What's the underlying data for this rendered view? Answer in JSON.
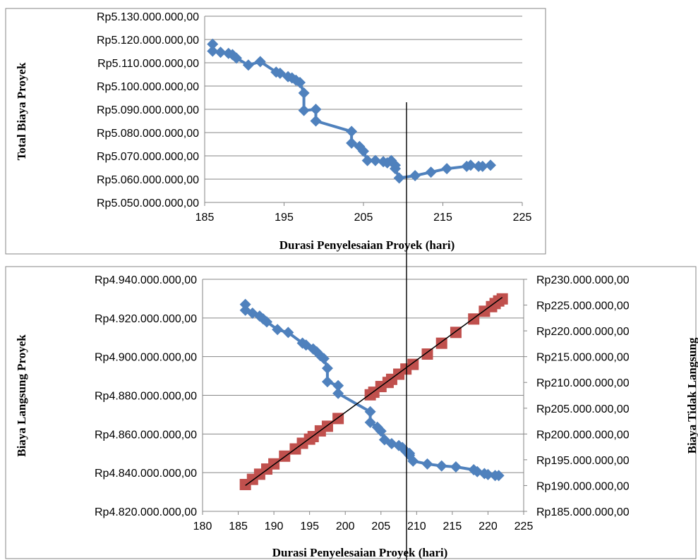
{
  "chart_data": [
    {
      "type": "line",
      "name": "total-cost-chart",
      "xlabel": "Durasi Penyelesaian Proyek (hari)",
      "ylabel": "Total Biaya Proyek",
      "xlim": [
        185,
        225
      ],
      "ylim": [
        5050000000,
        5130000000
      ],
      "x_ticks": [
        "185",
        "195",
        "205",
        "215",
        "225"
      ],
      "y_ticks": [
        "Rp5.050.000.000,00",
        "Rp5.060.000.000,00",
        "Rp5.070.000.000,00",
        "Rp5.080.000.000,00",
        "Rp5.090.000.000,00",
        "Rp5.100.000.000,00",
        "Rp5.110.000.000,00",
        "Rp5.120.000.000,00",
        "Rp5.130.000.000,00"
      ],
      "grid": true,
      "series": [
        {
          "color": "#4F81BD",
          "marker": "diamond",
          "x": [
            186,
            186,
            187,
            188,
            188.5,
            189,
            190.5,
            192,
            194,
            194.5,
            195.5,
            196,
            196.5,
            197,
            197.5,
            197.5,
            199,
            199,
            203.5,
            203.5,
            204.5,
            205,
            205.5,
            206.5,
            207.5,
            208,
            208.5,
            209,
            209,
            209.5,
            211.5,
            213.5,
            215.5,
            218,
            218.5,
            219.5,
            220,
            221
          ],
          "y": [
            5118000000,
            5115000000,
            5114500000,
            5114000000,
            5113500000,
            5112000000,
            5109000000,
            5110500000,
            5106000000,
            5105500000,
            5104000000,
            5103500000,
            5102500000,
            5101500000,
            5097000000,
            5089500000,
            5090000000,
            5085000000,
            5080500000,
            5075500000,
            5074000000,
            5072000000,
            5068000000,
            5068000000,
            5067500000,
            5067000000,
            5068000000,
            5066000000,
            5064500000,
            5060500000,
            5061500000,
            5063000000,
            5064500000,
            5065500000,
            5066000000,
            5065500000,
            5065500000,
            5066000000
          ]
        }
      ]
    },
    {
      "type": "line",
      "name": "direct-indirect-cost-chart",
      "xlabel": "Durasi Penyelesaian Proyek (hari)",
      "ylabel": "Biaya Langsung Proyek",
      "y2label": "Biaya Tidak Langsung",
      "xlim": [
        180,
        225
      ],
      "ylim": [
        4820000000,
        4940000000
      ],
      "y2lim": [
        185000000,
        230000000
      ],
      "x_ticks": [
        "180",
        "185",
        "190",
        "195",
        "200",
        "205",
        "210",
        "215",
        "220",
        "225"
      ],
      "y_ticks": [
        "Rp4.820.000.000,00",
        "Rp4.840.000.000,00",
        "Rp4.860.000.000,00",
        "Rp4.880.000.000,00",
        "Rp4.900.000.000,00",
        "Rp4.920.000.000,00",
        "Rp4.940.000.000,00"
      ],
      "y2_ticks": [
        "Rp185.000.000,00",
        "Rp190.000.000,00",
        "Rp195.000.000,00",
        "Rp200.000.000,00",
        "Rp205.000.000,00",
        "Rp210.000.000,00",
        "Rp215.000.000,00",
        "Rp220.000.000,00",
        "Rp225.000.000,00",
        "Rp230.000.000,00"
      ],
      "grid": true,
      "series": [
        {
          "axis": "left",
          "color": "#4F81BD",
          "marker": "diamond",
          "x": [
            186,
            186,
            187,
            188,
            188.5,
            189,
            190.5,
            192,
            194,
            194.5,
            195.5,
            196,
            196.5,
            197,
            197.5,
            197.5,
            199,
            199,
            203.5,
            203.5,
            204.5,
            205,
            205.5,
            206.5,
            207.5,
            208,
            208.5,
            209,
            209,
            209.5,
            211.5,
            213.5,
            215.5,
            218,
            218.5,
            219.5,
            220,
            221,
            221.5
          ],
          "y": [
            4927000000,
            4924000000,
            4922500000,
            4921000000,
            4919500000,
            4918000000,
            4914000000,
            4912500000,
            4907000000,
            4906000000,
            4904000000,
            4902500000,
            4900500000,
            4899000000,
            4894000000,
            4887000000,
            4885000000,
            4881000000,
            4871500000,
            4866000000,
            4863500000,
            4861500000,
            4857000000,
            4855000000,
            4854000000,
            4853000000,
            4851000000,
            4850000000,
            4849000000,
            4846000000,
            4844500000,
            4843500000,
            4843000000,
            4841500000,
            4840500000,
            4839500000,
            4839000000,
            4838500000,
            4838500000
          ]
        },
        {
          "axis": "right",
          "color": "#C0504D",
          "marker": "square",
          "x": [
            186,
            187,
            188,
            189,
            190,
            191.5,
            193,
            194,
            195,
            195.5,
            196.5,
            197.5,
            199,
            203.5,
            204,
            205,
            206,
            206.5,
            207.5,
            208.5,
            209.5,
            211.5,
            213.5,
            215.5,
            218,
            219.5,
            220.5,
            221,
            221.5,
            222
          ],
          "y": [
            190200000,
            191200000,
            192200000,
            193200000,
            194200000,
            195700000,
            197100000,
            198200000,
            199000000,
            199500000,
            200600000,
            201500000,
            203000000,
            207600000,
            208100000,
            209200000,
            210000000,
            210600000,
            211600000,
            212600000,
            213500000,
            215500000,
            217600000,
            219700000,
            222300000,
            223800000,
            224700000,
            225300000,
            225800000,
            226200000
          ]
        },
        {
          "axis": "right",
          "color": "#000000",
          "marker": "none",
          "x": [
            186,
            222
          ],
          "y": [
            190000000,
            226500000
          ]
        }
      ]
    }
  ]
}
